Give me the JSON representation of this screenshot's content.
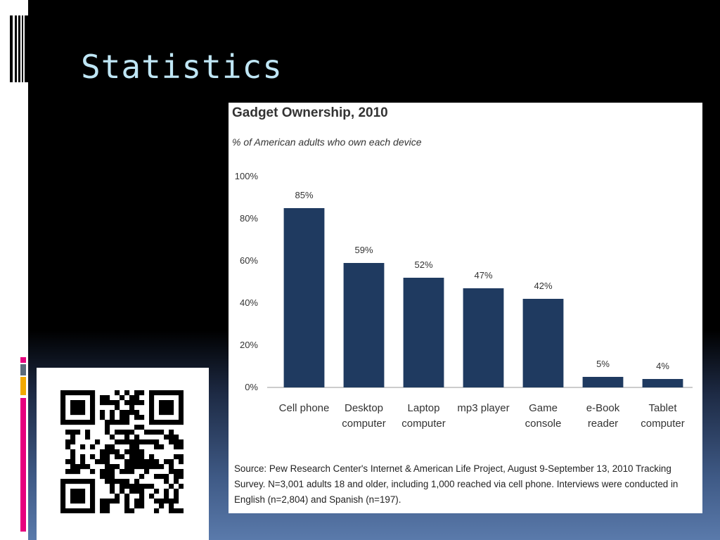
{
  "slide": {
    "title": "Statistics"
  },
  "chart_data": {
    "type": "bar",
    "title": "Gadget Ownership, 2010",
    "subtitle": "% of American adults who own each device",
    "categories": [
      [
        "Cell phone"
      ],
      [
        "Desktop",
        "computer"
      ],
      [
        "Laptop",
        "computer"
      ],
      [
        "mp3 player"
      ],
      [
        "Game",
        "console"
      ],
      [
        "e-Book",
        "reader"
      ],
      [
        "Tablet",
        "computer"
      ]
    ],
    "values": [
      85,
      59,
      52,
      47,
      42,
      5,
      4
    ],
    "data_labels": [
      "85%",
      "59%",
      "52%",
      "47%",
      "42%",
      "5%",
      "4%"
    ],
    "ylim": [
      0,
      100
    ],
    "yticks": [
      "0%",
      "20%",
      "40%",
      "60%",
      "80%",
      "100%"
    ],
    "bar_color": "#1f3a60",
    "grid": false,
    "source": "Source:  Pew Research Center's Internet & American Life Project, August 9-September 13, 2010 Tracking Survey. N=3,001 adults 18 and older, including 1,000 reached via cell phone. Interviews were conducted in English (n=2,804) and Spanish (n=197)."
  },
  "colors": {
    "title": "#bfe6f5",
    "accent_pink": "#e6007e",
    "accent_gold": "#f2a900",
    "accent_slate": "#5b6b7a"
  },
  "qr_code": {
    "icon": "qr-code-icon"
  }
}
